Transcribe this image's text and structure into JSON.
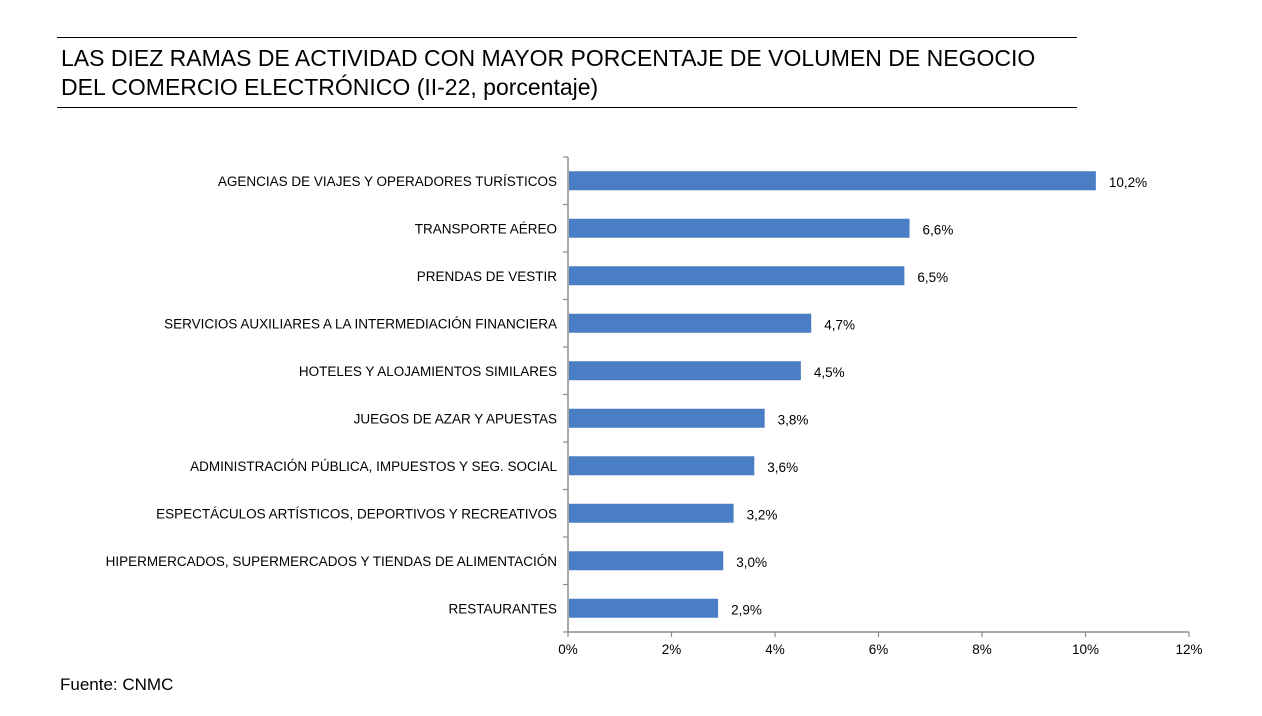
{
  "title": {
    "line1": "LAS DIEZ RAMAS DE ACTIVIDAD CON MAYOR PORCENTAJE DE VOLUMEN DE NEGOCIO",
    "line2": "DEL COMERCIO ELECTRÓNICO (II-22, porcentaje)"
  },
  "source": "Fuente: CNMC",
  "colors": {
    "bar": "#4a7ec4",
    "axis": "#8c8c8c"
  },
  "chart_data": {
    "type": "bar",
    "orientation": "horizontal",
    "categories": [
      "AGENCIAS DE VIAJES Y OPERADORES TURÍSTICOS",
      "TRANSPORTE AÉREO",
      "PRENDAS DE VESTIR",
      "SERVICIOS AUXILIARES A LA INTERMEDIACIÓN FINANCIERA",
      "HOTELES  Y ALOJAMIENTOS SIMILARES",
      "JUEGOS DE AZAR Y APUESTAS",
      "ADMINISTRACIÓN PÚBLICA, IMPUESTOS Y SEG. SOCIAL",
      "ESPECTÁCULOS ARTÍSTICOS, DEPORTIVOS Y RECREATIVOS",
      "HIPERMERCADOS, SUPERMERCADOS Y TIENDAS DE ALIMENTACIÓN",
      "RESTAURANTES"
    ],
    "values": [
      10.2,
      6.6,
      6.5,
      4.7,
      4.5,
      3.8,
      3.6,
      3.2,
      3.0,
      2.9
    ],
    "value_labels": [
      "10,2%",
      "6,6%",
      "6,5%",
      "4,7%",
      "4,5%",
      "3,8%",
      "3,6%",
      "3,2%",
      "3,0%",
      "2,9%"
    ],
    "xlim": [
      0,
      12
    ],
    "x_ticks": [
      0,
      2,
      4,
      6,
      8,
      10,
      12
    ],
    "x_tick_labels": [
      "0%",
      "2%",
      "4%",
      "6%",
      "8%",
      "10%",
      "12%"
    ],
    "grid": false,
    "legend": "none"
  }
}
